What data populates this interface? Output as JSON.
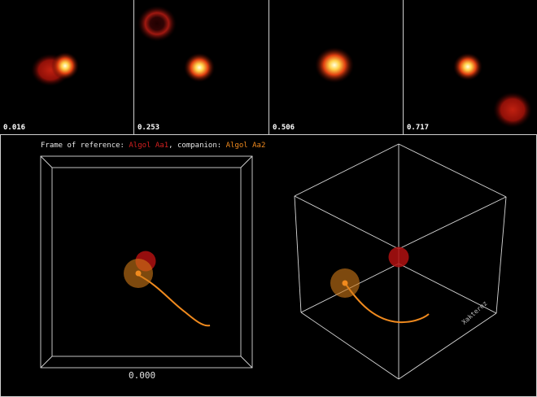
{
  "frames": [
    {
      "phase": "0.016"
    },
    {
      "phase": "0.253"
    },
    {
      "phase": "0.506"
    },
    {
      "phase": "0.717"
    }
  ],
  "caption": {
    "prefix": "Frame of reference: ",
    "primary": "Algol Aa1",
    "middle": ", companion: ",
    "secondary": "Algol Aa2"
  },
  "time_readout": "0.000",
  "credit": "Xakterez",
  "colors": {
    "primary": "#c01010",
    "secondary": "#f08a1e",
    "grid": "#d8d8d8"
  }
}
